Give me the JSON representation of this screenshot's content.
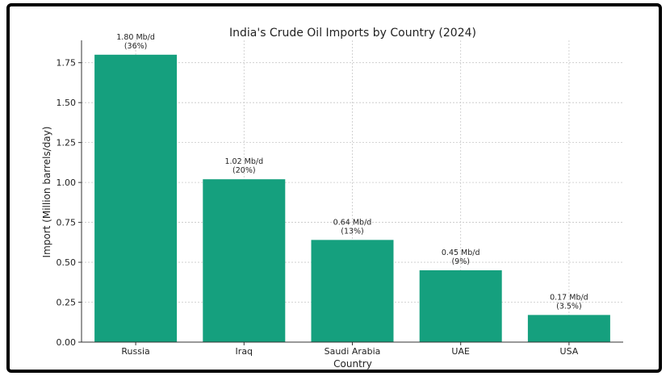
{
  "chart_data": {
    "type": "bar",
    "title": "India's Crude Oil Imports by Country (2024)",
    "xlabel": "Country",
    "ylabel": "Import (Million barrels/day)",
    "categories": [
      "Russia",
      "Iraq",
      "Saudi Arabia",
      "UAE",
      "USA"
    ],
    "values": [
      1.8,
      1.02,
      0.64,
      0.45,
      0.17
    ],
    "bar_labels": [
      [
        "1.80 Mb/d",
        "(36%)"
      ],
      [
        "1.02 Mb/d",
        "(20%)"
      ],
      [
        "0.64 Mb/d",
        "(13%)"
      ],
      [
        "0.45 Mb/d",
        "(9%)"
      ],
      [
        "0.17 Mb/d",
        "(3.5%)"
      ]
    ],
    "ylim": [
      0,
      1.89
    ],
    "yticks": [
      0.0,
      0.25,
      0.5,
      0.75,
      1.0,
      1.25,
      1.5,
      1.75
    ],
    "ytick_labels": [
      "0.00",
      "0.25",
      "0.50",
      "0.75",
      "1.00",
      "1.25",
      "1.50",
      "1.75"
    ],
    "grid": true,
    "bar_color": "#15a07e",
    "grid_color": "#c8c8c8"
  }
}
